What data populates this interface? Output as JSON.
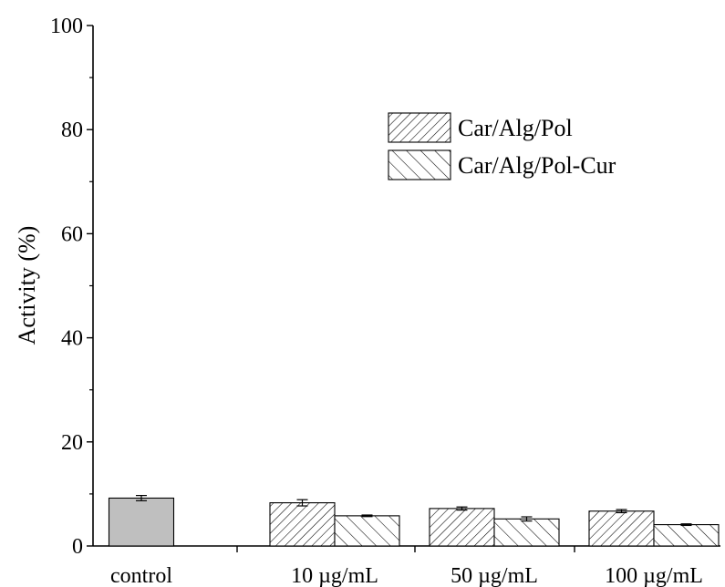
{
  "chart_data": {
    "type": "bar",
    "categories": [
      "control",
      "10 µg/mL",
      "50 µg/mL",
      "100 µg/mL"
    ],
    "ylabel": "Activity (%)",
    "xlabel": "",
    "ylim": [
      0,
      100
    ],
    "y_ticks": [
      0,
      20,
      40,
      60,
      80,
      100
    ],
    "grid": false,
    "legend_position": "top-right",
    "control": {
      "value": 9.2,
      "error": 0.5,
      "color": "#bfbfbf"
    },
    "series": [
      {
        "name": "Car/Alg/Pol",
        "values": [
          null,
          8.3,
          7.2,
          6.7
        ],
        "errors": [
          null,
          0.6,
          0.3,
          0.3
        ],
        "pattern": "hatch-forward"
      },
      {
        "name": "Car/Alg/Pol-Cur",
        "values": [
          null,
          5.8,
          5.2,
          4.1
        ],
        "errors": [
          null,
          0.15,
          0.4,
          0.15
        ],
        "pattern": "hatch-back"
      }
    ]
  }
}
